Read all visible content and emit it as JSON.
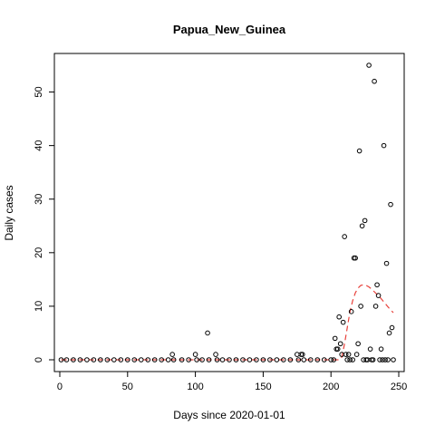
{
  "chart_data": {
    "type": "scatter",
    "title": "Papua_New_Guinea",
    "xlabel": "Days since 2020-01-01",
    "ylabel": "Daily cases",
    "xlim": [
      -4,
      254
    ],
    "ylim": [
      -2.2,
      57.2
    ],
    "xticks": [
      0,
      50,
      100,
      150,
      200,
      250
    ],
    "yticks": [
      0,
      10,
      20,
      30,
      40,
      50
    ],
    "grid": false,
    "point_color": "#000000",
    "trend_color": "#e8403a",
    "points": [
      [
        1,
        0
      ],
      [
        5,
        0
      ],
      [
        10,
        0
      ],
      [
        15,
        0
      ],
      [
        20,
        0
      ],
      [
        25,
        0
      ],
      [
        30,
        0
      ],
      [
        35,
        0
      ],
      [
        40,
        0
      ],
      [
        45,
        0
      ],
      [
        50,
        0
      ],
      [
        55,
        0
      ],
      [
        60,
        0
      ],
      [
        65,
        0
      ],
      [
        70,
        0
      ],
      [
        75,
        0
      ],
      [
        80,
        0
      ],
      [
        83,
        1
      ],
      [
        84,
        0
      ],
      [
        90,
        0
      ],
      [
        95,
        0
      ],
      [
        100,
        1
      ],
      [
        101,
        0
      ],
      [
        105,
        0
      ],
      [
        109,
        5
      ],
      [
        110,
        0
      ],
      [
        115,
        1
      ],
      [
        116,
        0
      ],
      [
        120,
        0
      ],
      [
        125,
        0
      ],
      [
        130,
        0
      ],
      [
        135,
        0
      ],
      [
        140,
        0
      ],
      [
        145,
        0
      ],
      [
        150,
        0
      ],
      [
        155,
        0
      ],
      [
        160,
        0
      ],
      [
        165,
        0
      ],
      [
        170,
        0
      ],
      [
        175,
        1
      ],
      [
        176,
        0
      ],
      [
        178,
        1
      ],
      [
        179,
        1
      ],
      [
        180,
        0
      ],
      [
        185,
        0
      ],
      [
        190,
        0
      ],
      [
        195,
        0
      ],
      [
        200,
        0
      ],
      [
        202,
        0
      ],
      [
        203,
        4
      ],
      [
        204,
        2
      ],
      [
        205,
        2
      ],
      [
        206,
        8
      ],
      [
        207,
        3
      ],
      [
        208,
        1
      ],
      [
        209,
        7
      ],
      [
        210,
        23
      ],
      [
        211,
        1
      ],
      [
        212,
        0
      ],
      [
        213,
        1
      ],
      [
        214,
        0
      ],
      [
        215,
        9
      ],
      [
        216,
        0
      ],
      [
        217,
        19
      ],
      [
        218,
        19
      ],
      [
        219,
        1
      ],
      [
        220,
        3
      ],
      [
        221,
        39
      ],
      [
        222,
        10
      ],
      [
        223,
        25
      ],
      [
        224,
        0
      ],
      [
        225,
        26
      ],
      [
        226,
        0
      ],
      [
        227,
        0
      ],
      [
        228,
        55
      ],
      [
        229,
        2
      ],
      [
        230,
        0
      ],
      [
        231,
        0
      ],
      [
        232,
        52
      ],
      [
        233,
        10
      ],
      [
        234,
        14
      ],
      [
        235,
        12
      ],
      [
        236,
        0
      ],
      [
        237,
        2
      ],
      [
        238,
        0
      ],
      [
        239,
        40
      ],
      [
        240,
        0
      ],
      [
        241,
        18
      ],
      [
        242,
        0
      ],
      [
        243,
        5
      ],
      [
        244,
        29
      ],
      [
        245,
        6
      ],
      [
        246,
        0
      ]
    ],
    "trend": [
      [
        1,
        0
      ],
      [
        50,
        0
      ],
      [
        100,
        0
      ],
      [
        150,
        0
      ],
      [
        200,
        0
      ],
      [
        206,
        0
      ],
      [
        208,
        0.5
      ],
      [
        210,
        3
      ],
      [
        212,
        6
      ],
      [
        214,
        9
      ],
      [
        216,
        11
      ],
      [
        218,
        12.5
      ],
      [
        220,
        13.4
      ],
      [
        222,
        13.9
      ],
      [
        224,
        14
      ],
      [
        226,
        13.9
      ],
      [
        228,
        13.6
      ],
      [
        230,
        13.2
      ],
      [
        232,
        12.7
      ],
      [
        234,
        12.2
      ],
      [
        236,
        11.7
      ],
      [
        238,
        11.1
      ],
      [
        240,
        10.5
      ],
      [
        242,
        9.9
      ],
      [
        244,
        9.3
      ],
      [
        246,
        8.8
      ]
    ]
  }
}
